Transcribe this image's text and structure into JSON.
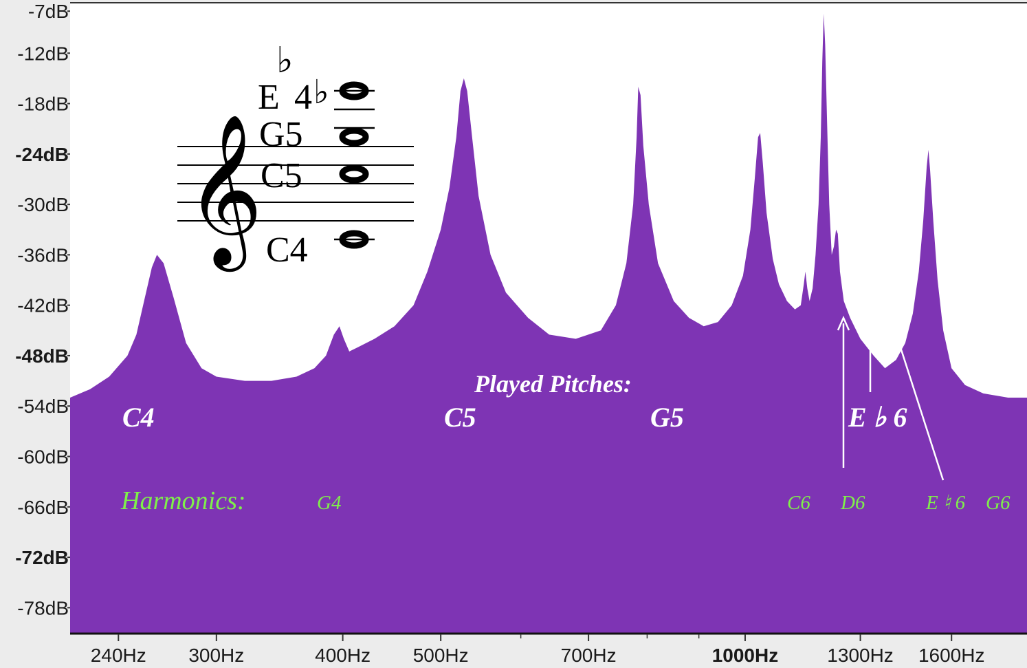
{
  "chart_data": {
    "type": "area",
    "title": "",
    "xlabel": "",
    "ylabel": "",
    "x_scale": "log",
    "xlim": [
      215,
      1900
    ],
    "ylim": [
      -81,
      -6
    ],
    "color": "#7e34b4",
    "y_ticks": [
      {
        "value": -7,
        "label": "-7dB",
        "bold": false
      },
      {
        "value": -12,
        "label": "-12dB",
        "bold": false
      },
      {
        "value": -18,
        "label": "-18dB",
        "bold": false
      },
      {
        "value": -24,
        "label": "-24dB",
        "bold": true
      },
      {
        "value": -30,
        "label": "-30dB",
        "bold": false
      },
      {
        "value": -36,
        "label": "-36dB",
        "bold": false
      },
      {
        "value": -42,
        "label": "-42dB",
        "bold": false
      },
      {
        "value": -48,
        "label": "-48dB",
        "bold": true
      },
      {
        "value": -54,
        "label": "-54dB",
        "bold": false
      },
      {
        "value": -60,
        "label": "-60dB",
        "bold": false
      },
      {
        "value": -66,
        "label": "-66dB",
        "bold": false
      },
      {
        "value": -72,
        "label": "-72dB",
        "bold": true
      },
      {
        "value": -78,
        "label": "-78dB",
        "bold": false
      }
    ],
    "x_ticks": [
      {
        "value": 240,
        "label": "240Hz",
        "bold": false
      },
      {
        "value": 300,
        "label": "300Hz",
        "bold": false
      },
      {
        "value": 400,
        "label": "400Hz",
        "bold": false
      },
      {
        "value": 500,
        "label": "500Hz",
        "bold": false
      },
      {
        "value": 700,
        "label": "700Hz",
        "bold": false
      },
      {
        "value": 1000,
        "label": "1000Hz",
        "bold": true
      },
      {
        "value": 1300,
        "label": "1300Hz",
        "bold": false
      },
      {
        "value": 1600,
        "label": "1600Hz",
        "bold": false
      }
    ],
    "minor_x_ticks": [
      600,
      800,
      900
    ],
    "spectrum": [
      [
        215,
        -53.0
      ],
      [
        225,
        -52.0
      ],
      [
        235,
        -50.5
      ],
      [
        245,
        -48.0
      ],
      [
        250,
        -45.5
      ],
      [
        255,
        -41.0
      ],
      [
        259,
        -37.5
      ],
      [
        262,
        -36.0
      ],
      [
        266,
        -37.0
      ],
      [
        272,
        -41.0
      ],
      [
        280,
        -46.5
      ],
      [
        290,
        -49.5
      ],
      [
        300,
        -50.5
      ],
      [
        320,
        -51.0
      ],
      [
        340,
        -51.0
      ],
      [
        360,
        -50.5
      ],
      [
        375,
        -49.5
      ],
      [
        385,
        -48.0
      ],
      [
        392,
        -45.5
      ],
      [
        397,
        -44.5
      ],
      [
        401,
        -46.0
      ],
      [
        406,
        -47.5
      ],
      [
        414,
        -47.0
      ],
      [
        430,
        -46.0
      ],
      [
        450,
        -44.5
      ],
      [
        470,
        -42.0
      ],
      [
        485,
        -38.0
      ],
      [
        500,
        -33.0
      ],
      [
        510,
        -28.0
      ],
      [
        518,
        -22.0
      ],
      [
        523,
        -16.5
      ],
      [
        527,
        -15.0
      ],
      [
        531,
        -16.5
      ],
      [
        537,
        -22.0
      ],
      [
        545,
        -29.0
      ],
      [
        560,
        -36.0
      ],
      [
        580,
        -40.5
      ],
      [
        610,
        -43.5
      ],
      [
        640,
        -45.5
      ],
      [
        680,
        -46.0
      ],
      [
        720,
        -45.0
      ],
      [
        745,
        -42.0
      ],
      [
        763,
        -37.0
      ],
      [
        775,
        -30.0
      ],
      [
        781,
        -22.0
      ],
      [
        784,
        -16.0
      ],
      [
        788,
        -17.0
      ],
      [
        793,
        -23.0
      ],
      [
        803,
        -30.0
      ],
      [
        820,
        -37.0
      ],
      [
        850,
        -41.5
      ],
      [
        880,
        -43.5
      ],
      [
        910,
        -44.5
      ],
      [
        940,
        -44.0
      ],
      [
        970,
        -42.0
      ],
      [
        995,
        -38.5
      ],
      [
        1012,
        -33.0
      ],
      [
        1022,
        -27.0
      ],
      [
        1030,
        -22.0
      ],
      [
        1035,
        -21.5
      ],
      [
        1041,
        -25.0
      ],
      [
        1050,
        -31.0
      ],
      [
        1065,
        -36.5
      ],
      [
        1080,
        -39.5
      ],
      [
        1100,
        -41.5
      ],
      [
        1120,
        -42.5
      ],
      [
        1135,
        -42.0
      ],
      [
        1143,
        -39.5
      ],
      [
        1147,
        -38.0
      ],
      [
        1152,
        -40.0
      ],
      [
        1158,
        -41.5
      ],
      [
        1166,
        -40.0
      ],
      [
        1174,
        -36.0
      ],
      [
        1182,
        -30.0
      ],
      [
        1188,
        -22.0
      ],
      [
        1192,
        -13.0
      ],
      [
        1196,
        -7.3
      ],
      [
        1200,
        -11.0
      ],
      [
        1205,
        -20.0
      ],
      [
        1211,
        -30.0
      ],
      [
        1218,
        -36.0
      ],
      [
        1224,
        -35.0
      ],
      [
        1230,
        -33.0
      ],
      [
        1235,
        -33.5
      ],
      [
        1241,
        -38.0
      ],
      [
        1252,
        -41.5
      ],
      [
        1270,
        -43.5
      ],
      [
        1300,
        -46.0
      ],
      [
        1340,
        -48.0
      ],
      [
        1375,
        -49.5
      ],
      [
        1410,
        -48.5
      ],
      [
        1440,
        -46.5
      ],
      [
        1465,
        -43.0
      ],
      [
        1485,
        -38.0
      ],
      [
        1500,
        -32.0
      ],
      [
        1512,
        -25.5
      ],
      [
        1518,
        -23.5
      ],
      [
        1524,
        -26.0
      ],
      [
        1535,
        -32.0
      ],
      [
        1550,
        -39.0
      ],
      [
        1570,
        -45.0
      ],
      [
        1600,
        -49.5
      ],
      [
        1650,
        -51.5
      ],
      [
        1720,
        -52.5
      ],
      [
        1820,
        -53.0
      ],
      [
        1900,
        -53.0
      ]
    ],
    "annotations": {
      "played_title": "Played Pitches:",
      "played": [
        "C4",
        "C5",
        "G5",
        "E ♭ 6"
      ],
      "harmonics_title": "Harmonics:",
      "harmonics": [
        "G4",
        "C6",
        "D6",
        "E ♮ 6",
        "G6"
      ]
    },
    "notation": {
      "labels": [
        "E",
        "4",
        "G5",
        "C5",
        "C4"
      ],
      "accidentals": [
        "♭",
        "♭"
      ],
      "clef": "𝄞"
    }
  }
}
